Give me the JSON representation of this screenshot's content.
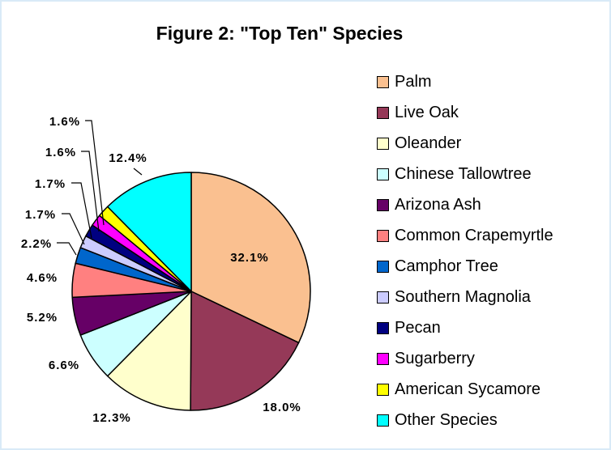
{
  "chart_data": {
    "type": "pie",
    "title": "Figure 2: \"Top Ten\" Species",
    "slices": [
      {
        "label": "Palm",
        "value": 32.1,
        "display": "32.1%",
        "color": "#fac090"
      },
      {
        "label": "Live Oak",
        "value": 18.0,
        "display": "18.0%",
        "color": "#953958"
      },
      {
        "label": "Oleander",
        "value": 12.3,
        "display": "12.3%",
        "color": "#ffffcc"
      },
      {
        "label": "Chinese Tallowtree",
        "value": 6.6,
        "display": "6.6%",
        "color": "#ccffff"
      },
      {
        "label": "Arizona Ash",
        "value": 5.2,
        "display": "5.2%",
        "color": "#660066"
      },
      {
        "label": "Common Crapemyrtle",
        "value": 4.6,
        "display": "4.6%",
        "color": "#ff8080"
      },
      {
        "label": "Camphor Tree",
        "value": 2.2,
        "display": "2.2%",
        "color": "#0066cc"
      },
      {
        "label": "Southern Magnolia",
        "value": 1.7,
        "display": "1.7%",
        "color": "#ccccff"
      },
      {
        "label": "Pecan",
        "value": 1.7,
        "display": "1.7%",
        "color": "#000080"
      },
      {
        "label": "Sugarberry",
        "value": 1.6,
        "display": "1.6%",
        "color": "#ff00ff"
      },
      {
        "label": "American Sycamore",
        "value": 1.6,
        "display": "1.6%",
        "color": "#ffff00"
      },
      {
        "label": "Other Species",
        "value": 12.4,
        "display": "12.4%",
        "color": "#00ffff"
      }
    ],
    "legend_position": "right"
  }
}
